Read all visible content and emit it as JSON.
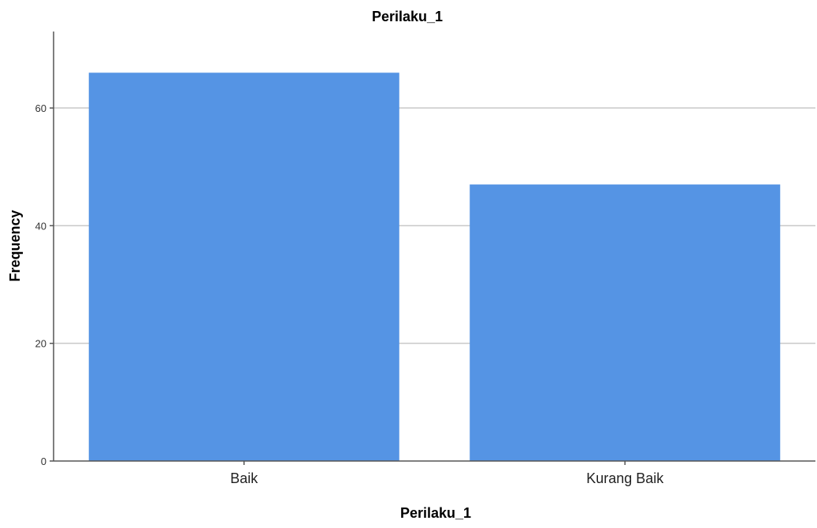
{
  "chart_data": {
    "type": "bar",
    "title": "Perilaku_1",
    "xlabel": "Perilaku_1",
    "ylabel": "Frequency",
    "categories": [
      "Baik",
      "Kurang Baik"
    ],
    "values": [
      66,
      47
    ],
    "ylim": [
      0,
      73
    ],
    "yticks": [
      0,
      20,
      40,
      60
    ],
    "grid": true,
    "bar_color": "#5594e4"
  }
}
